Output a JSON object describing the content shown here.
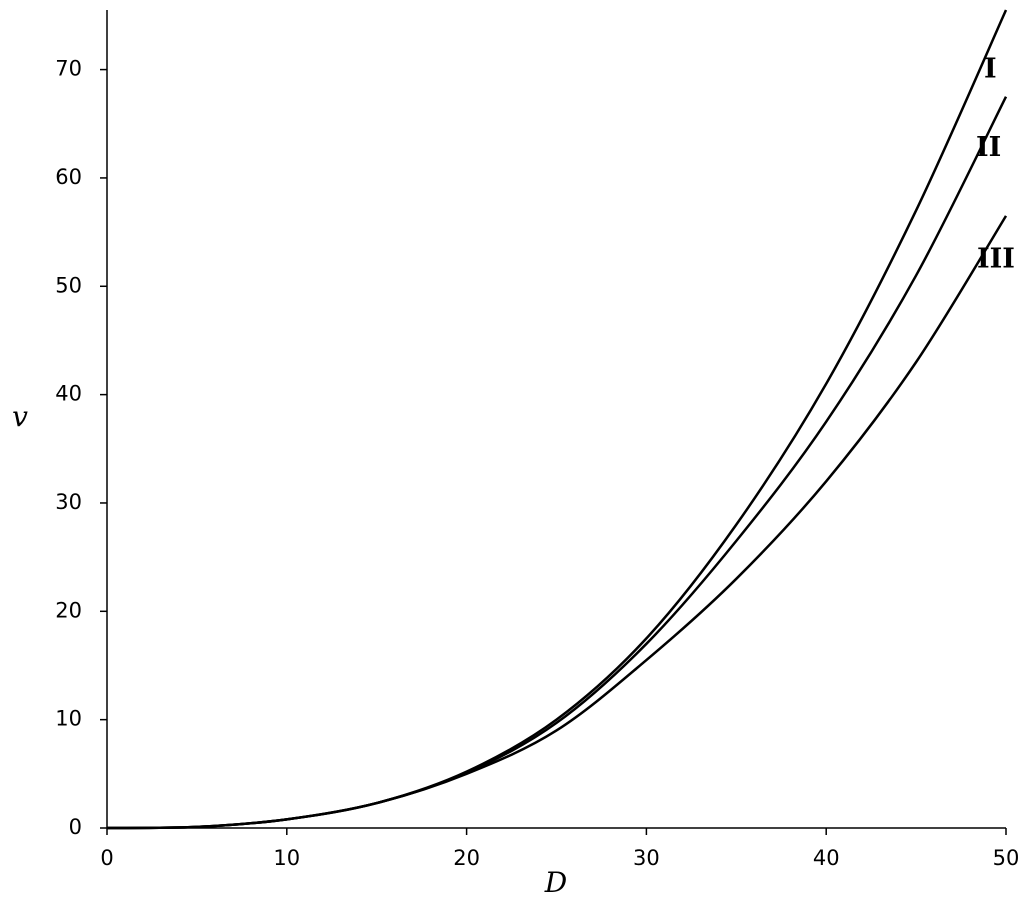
{
  "chart_data": {
    "type": "line",
    "x_label": "D",
    "y_label": "v",
    "x": [
      0,
      5,
      10,
      15,
      20,
      25,
      30,
      35,
      40,
      45,
      50
    ],
    "series": [
      {
        "name": "I",
        "color": "#000000",
        "values": [
          0,
          0.1,
          0.8,
          2.3,
          5.2,
          10,
          17.5,
          28,
          41,
          57,
          75.5
        ]
      },
      {
        "name": "II",
        "color": "#000000",
        "values": [
          0,
          0.1,
          0.8,
          2.3,
          5.1,
          9.7,
          17,
          26.5,
          37.5,
          51,
          67.5
        ]
      },
      {
        "name": "III",
        "color": "#000000",
        "values": [
          0,
          0.1,
          0.8,
          2.3,
          5,
          9,
          15.5,
          23,
          32,
          43,
          56.5
        ]
      }
    ],
    "xlim": [
      0,
      50
    ],
    "ylim": [
      0,
      75.5
    ],
    "xticks": [
      0,
      10,
      20,
      30,
      40,
      50
    ],
    "yticks": [
      0,
      10,
      20,
      30,
      40,
      50,
      60,
      70
    ]
  }
}
